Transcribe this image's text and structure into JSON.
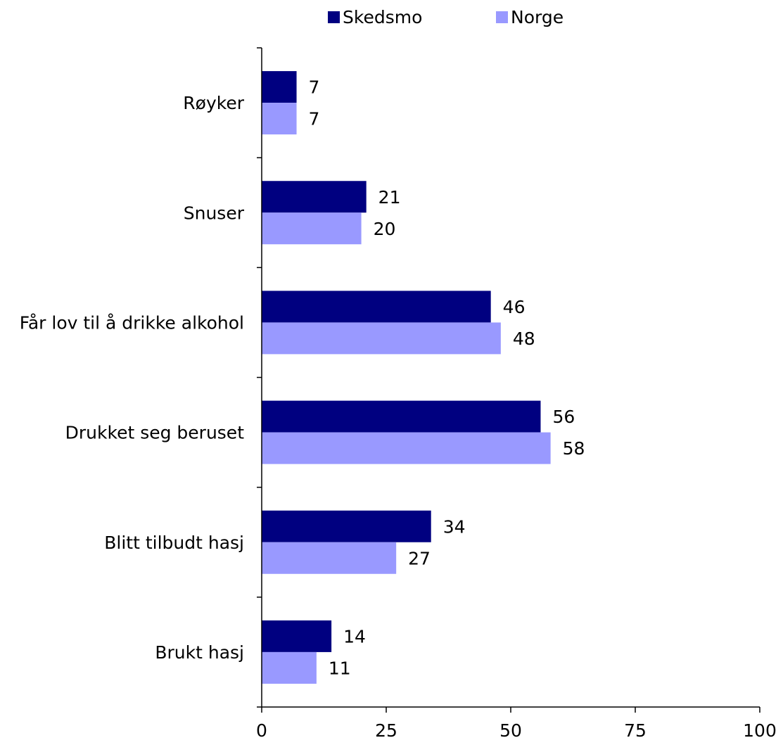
{
  "chart_data": {
    "type": "bar",
    "orientation": "horizontal",
    "categories": [
      "Røyker",
      "Snuser",
      "Får lov til å drikke alkohol",
      "Drukket seg beruset",
      "Blitt tilbudt hasj",
      "Brukt hasj"
    ],
    "series": [
      {
        "name": "Skedsmo",
        "values": [
          7,
          21,
          46,
          56,
          34,
          14
        ],
        "color": "#000080"
      },
      {
        "name": "Norge",
        "values": [
          7,
          20,
          48,
          58,
          27,
          11
        ],
        "color": "#9999ff"
      }
    ],
    "xlim": [
      0,
      100
    ],
    "x_ticks": [
      "0",
      "25",
      "50",
      "75",
      "100"
    ],
    "legend_position": "top",
    "grid": false,
    "data_labels": true,
    "title": "",
    "xlabel": "",
    "ylabel": ""
  }
}
